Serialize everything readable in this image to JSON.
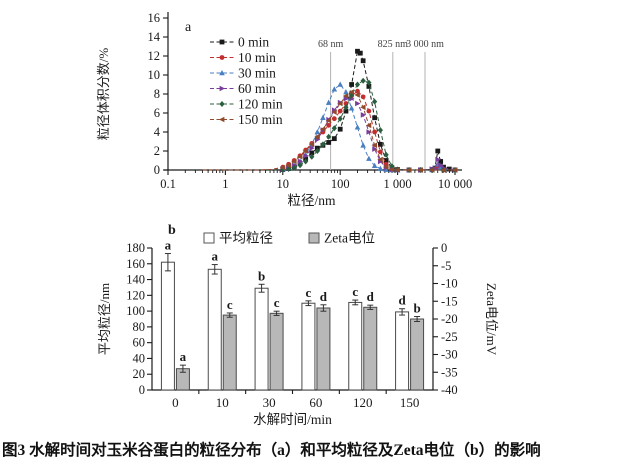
{
  "figure": {
    "caption": "图3 水解时间对玉米谷蛋白的粒径分布（a）和平均粒径及Zeta电位（b）的影响"
  },
  "chart_data": [
    {
      "id": "panel_a",
      "type": "line",
      "panel_label": "a",
      "xlabel": "粒径/nm",
      "ylabel": "粒径体积分数/%",
      "x_scale": "log",
      "xlim": [
        0.1,
        10000
      ],
      "x_tick_labels": [
        "0.1",
        "1",
        "10",
        "100",
        "1 000",
        "10 000"
      ],
      "ylim": [
        0,
        16
      ],
      "y_tick_step": 2,
      "grid": false,
      "legend_position": "upper-left-inside",
      "ref_lines": [
        {
          "x": 68,
          "label": "68 nm"
        },
        {
          "x": 825,
          "label": "825 nm"
        },
        {
          "x": 3000,
          "label": "3 000 nm"
        }
      ],
      "series": [
        {
          "name": "0 min",
          "color": "#1a1a1a",
          "marker": "square",
          "points": [
            [
              0.4,
              0
            ],
            [
              0.63,
              0
            ],
            [
              1,
              0
            ],
            [
              1.6,
              0
            ],
            [
              2.5,
              0
            ],
            [
              4,
              0
            ],
            [
              6.3,
              0
            ],
            [
              10,
              0.05
            ],
            [
              12.6,
              0.15
            ],
            [
              15.8,
              0.35
            ],
            [
              20,
              0.7
            ],
            [
              25,
              1.2
            ],
            [
              32,
              1.8
            ],
            [
              40,
              2.3
            ],
            [
              50,
              2.6
            ],
            [
              63,
              2.9
            ],
            [
              79,
              3.3
            ],
            [
              100,
              4.3
            ],
            [
              126,
              6.2
            ],
            [
              158,
              9.0
            ],
            [
              200,
              12.5
            ],
            [
              224,
              12.3
            ],
            [
              251,
              11.5
            ],
            [
              316,
              8.8
            ],
            [
              398,
              5.5
            ],
            [
              501,
              2.7
            ],
            [
              631,
              1.0
            ],
            [
              794,
              0.25
            ],
            [
              1000,
              0.05
            ],
            [
              1585,
              0
            ],
            [
              2512,
              0
            ],
            [
              3981,
              0.05
            ],
            [
              4467,
              0.2
            ],
            [
              5012,
              2.0
            ],
            [
              5623,
              0.9
            ],
            [
              6310,
              0.3
            ],
            [
              7943,
              0.1
            ],
            [
              10000,
              0
            ]
          ]
        },
        {
          "name": "10 min",
          "color": "#c22f2f",
          "marker": "circle",
          "points": [
            [
              0.4,
              0
            ],
            [
              0.63,
              0
            ],
            [
              1,
              0
            ],
            [
              1.6,
              0
            ],
            [
              2.5,
              0
            ],
            [
              4,
              0
            ],
            [
              6.3,
              0.05
            ],
            [
              10,
              0.3
            ],
            [
              12.6,
              0.6
            ],
            [
              15.8,
              1.0
            ],
            [
              20,
              1.5
            ],
            [
              25,
              2.1
            ],
            [
              32,
              2.8
            ],
            [
              40,
              3.4
            ],
            [
              50,
              4.0
            ],
            [
              63,
              4.7
            ],
            [
              79,
              5.4
            ],
            [
              100,
              6.2
            ],
            [
              126,
              7.0
            ],
            [
              158,
              7.8
            ],
            [
              200,
              8.3
            ],
            [
              251,
              7.7
            ],
            [
              316,
              6.2
            ],
            [
              398,
              4.0
            ],
            [
              501,
              1.9
            ],
            [
              631,
              0.6
            ],
            [
              794,
              0.15
            ],
            [
              1000,
              0.05
            ],
            [
              1585,
              0
            ],
            [
              2512,
              0
            ],
            [
              3981,
              0
            ],
            [
              5012,
              0.25
            ],
            [
              6310,
              0
            ],
            [
              10000,
              0
            ]
          ]
        },
        {
          "name": "30 min",
          "color": "#4a7fc1",
          "marker": "triangle-up",
          "points": [
            [
              0.4,
              0
            ],
            [
              0.63,
              0
            ],
            [
              1,
              0
            ],
            [
              1.6,
              0
            ],
            [
              2.5,
              0
            ],
            [
              4,
              0
            ],
            [
              6.3,
              0
            ],
            [
              10,
              0.1
            ],
            [
              12.6,
              0.2
            ],
            [
              15.8,
              0.45
            ],
            [
              20,
              0.9
            ],
            [
              25,
              1.6
            ],
            [
              32,
              2.7
            ],
            [
              40,
              4.0
            ],
            [
              50,
              5.5
            ],
            [
              63,
              7.1
            ],
            [
              79,
              8.5
            ],
            [
              100,
              9.0
            ],
            [
              126,
              8.2
            ],
            [
              158,
              6.5
            ],
            [
              200,
              4.5
            ],
            [
              251,
              2.6
            ],
            [
              316,
              1.2
            ],
            [
              398,
              0.45
            ],
            [
              501,
              0.15
            ],
            [
              631,
              0.05
            ],
            [
              794,
              0
            ],
            [
              1000,
              0
            ],
            [
              1585,
              0
            ],
            [
              2512,
              0
            ],
            [
              3981,
              0
            ],
            [
              5012,
              0.6
            ],
            [
              5623,
              0.3
            ],
            [
              6310,
              0.1
            ],
            [
              10000,
              0
            ]
          ]
        },
        {
          "name": "60 min",
          "color": "#7a3d9c",
          "marker": "triangle-right",
          "points": [
            [
              0.4,
              0
            ],
            [
              0.63,
              0
            ],
            [
              1,
              0
            ],
            [
              1.6,
              0
            ],
            [
              2.5,
              0
            ],
            [
              4,
              0
            ],
            [
              6.3,
              0
            ],
            [
              10,
              0.1
            ],
            [
              12.6,
              0.25
            ],
            [
              15.8,
              0.5
            ],
            [
              20,
              0.9
            ],
            [
              25,
              1.5
            ],
            [
              32,
              2.3
            ],
            [
              40,
              3.2
            ],
            [
              50,
              4.2
            ],
            [
              63,
              5.3
            ],
            [
              79,
              6.3
            ],
            [
              100,
              7.1
            ],
            [
              126,
              7.5
            ],
            [
              158,
              7.5
            ],
            [
              200,
              7.0
            ],
            [
              251,
              5.8
            ],
            [
              316,
              4.0
            ],
            [
              398,
              2.2
            ],
            [
              501,
              0.9
            ],
            [
              631,
              0.25
            ],
            [
              794,
              0.05
            ],
            [
              1000,
              0
            ],
            [
              1585,
              0
            ],
            [
              2512,
              0
            ],
            [
              3981,
              0.1
            ],
            [
              4467,
              0.15
            ],
            [
              5012,
              1.1
            ],
            [
              5623,
              0.5
            ],
            [
              6310,
              0.2
            ],
            [
              10000,
              0
            ]
          ]
        },
        {
          "name": "120 min",
          "color": "#2b5e3e",
          "marker": "diamond",
          "points": [
            [
              0.4,
              0
            ],
            [
              0.63,
              0
            ],
            [
              1,
              0
            ],
            [
              1.6,
              0
            ],
            [
              2.5,
              0
            ],
            [
              4,
              0
            ],
            [
              6.3,
              0
            ],
            [
              10,
              0.05
            ],
            [
              12.6,
              0.1
            ],
            [
              15.8,
              0.25
            ],
            [
              20,
              0.5
            ],
            [
              25,
              0.9
            ],
            [
              32,
              1.4
            ],
            [
              40,
              2.0
            ],
            [
              50,
              2.7
            ],
            [
              63,
              3.5
            ],
            [
              79,
              4.4
            ],
            [
              100,
              5.4
            ],
            [
              126,
              6.6
            ],
            [
              158,
              7.9
            ],
            [
              200,
              9.0
            ],
            [
              251,
              9.4
            ],
            [
              316,
              9.2
            ],
            [
              398,
              7.2
            ],
            [
              501,
              4.2
            ],
            [
              631,
              1.6
            ],
            [
              794,
              0.4
            ],
            [
              1000,
              0.05
            ],
            [
              1585,
              0
            ],
            [
              2512,
              0
            ],
            [
              3981,
              0
            ],
            [
              6310,
              0
            ],
            [
              10000,
              0
            ]
          ]
        },
        {
          "name": "150 min",
          "color": "#8f4b2d",
          "marker": "triangle-left",
          "points": [
            [
              0.4,
              0
            ],
            [
              0.63,
              0
            ],
            [
              1,
              0
            ],
            [
              1.6,
              0
            ],
            [
              2.5,
              0
            ],
            [
              4,
              0
            ],
            [
              6.3,
              0.05
            ],
            [
              10,
              0.25
            ],
            [
              12.6,
              0.5
            ],
            [
              15.8,
              0.9
            ],
            [
              20,
              1.4
            ],
            [
              25,
              2.0
            ],
            [
              32,
              2.7
            ],
            [
              40,
              3.5
            ],
            [
              50,
              4.3
            ],
            [
              63,
              5.2
            ],
            [
              79,
              6.1
            ],
            [
              100,
              7.0
            ],
            [
              126,
              7.8
            ],
            [
              158,
              8.2
            ],
            [
              200,
              7.9
            ],
            [
              251,
              6.6
            ],
            [
              316,
              4.7
            ],
            [
              398,
              2.6
            ],
            [
              501,
              1.1
            ],
            [
              631,
              0.3
            ],
            [
              794,
              0.05
            ],
            [
              1000,
              0
            ],
            [
              1585,
              0
            ],
            [
              2512,
              0
            ],
            [
              3981,
              0
            ],
            [
              6310,
              0
            ],
            [
              10000,
              0
            ]
          ]
        }
      ]
    },
    {
      "id": "panel_b",
      "type": "bar",
      "panel_label": "b",
      "categories": [
        "0",
        "10",
        "30",
        "60",
        "120",
        "150"
      ],
      "xlabel": "水解时间/min",
      "left_axis": {
        "label": "平均粒径/nm",
        "lim": [
          0,
          180
        ],
        "step": 20
      },
      "right_axis": {
        "label": "Zeta电位/mV",
        "lim": [
          0,
          -40
        ],
        "step": 5,
        "tick_labels": [
          "0",
          "-5",
          "-10",
          "-15",
          "-20",
          "-25",
          "-30",
          "-35",
          "-40"
        ]
      },
      "bar_colors": {
        "mean_size_fill": "#ffffff",
        "zeta_fill": "#b8b8b8",
        "stroke": "#4a4a4a"
      },
      "series": [
        {
          "name": "平均粒径",
          "axis": "left",
          "unit": "nm",
          "values": [
            162,
            153,
            129,
            110,
            111,
            99
          ],
          "errors": [
            11,
            6,
            5,
            3,
            3,
            4
          ],
          "letters": [
            "a",
            "a",
            "b",
            "c",
            "c",
            "d"
          ]
        },
        {
          "name": "Zeta电位",
          "axis": "right",
          "unit": "mV",
          "values": [
            -34,
            -18.9,
            -18.4,
            -16.9,
            -16.7,
            -20
          ],
          "errors": [
            1,
            0.6,
            0.6,
            0.9,
            0.6,
            0.7
          ],
          "letters": [
            "a",
            "c",
            "c",
            "d",
            "d",
            "b"
          ]
        }
      ]
    }
  ]
}
